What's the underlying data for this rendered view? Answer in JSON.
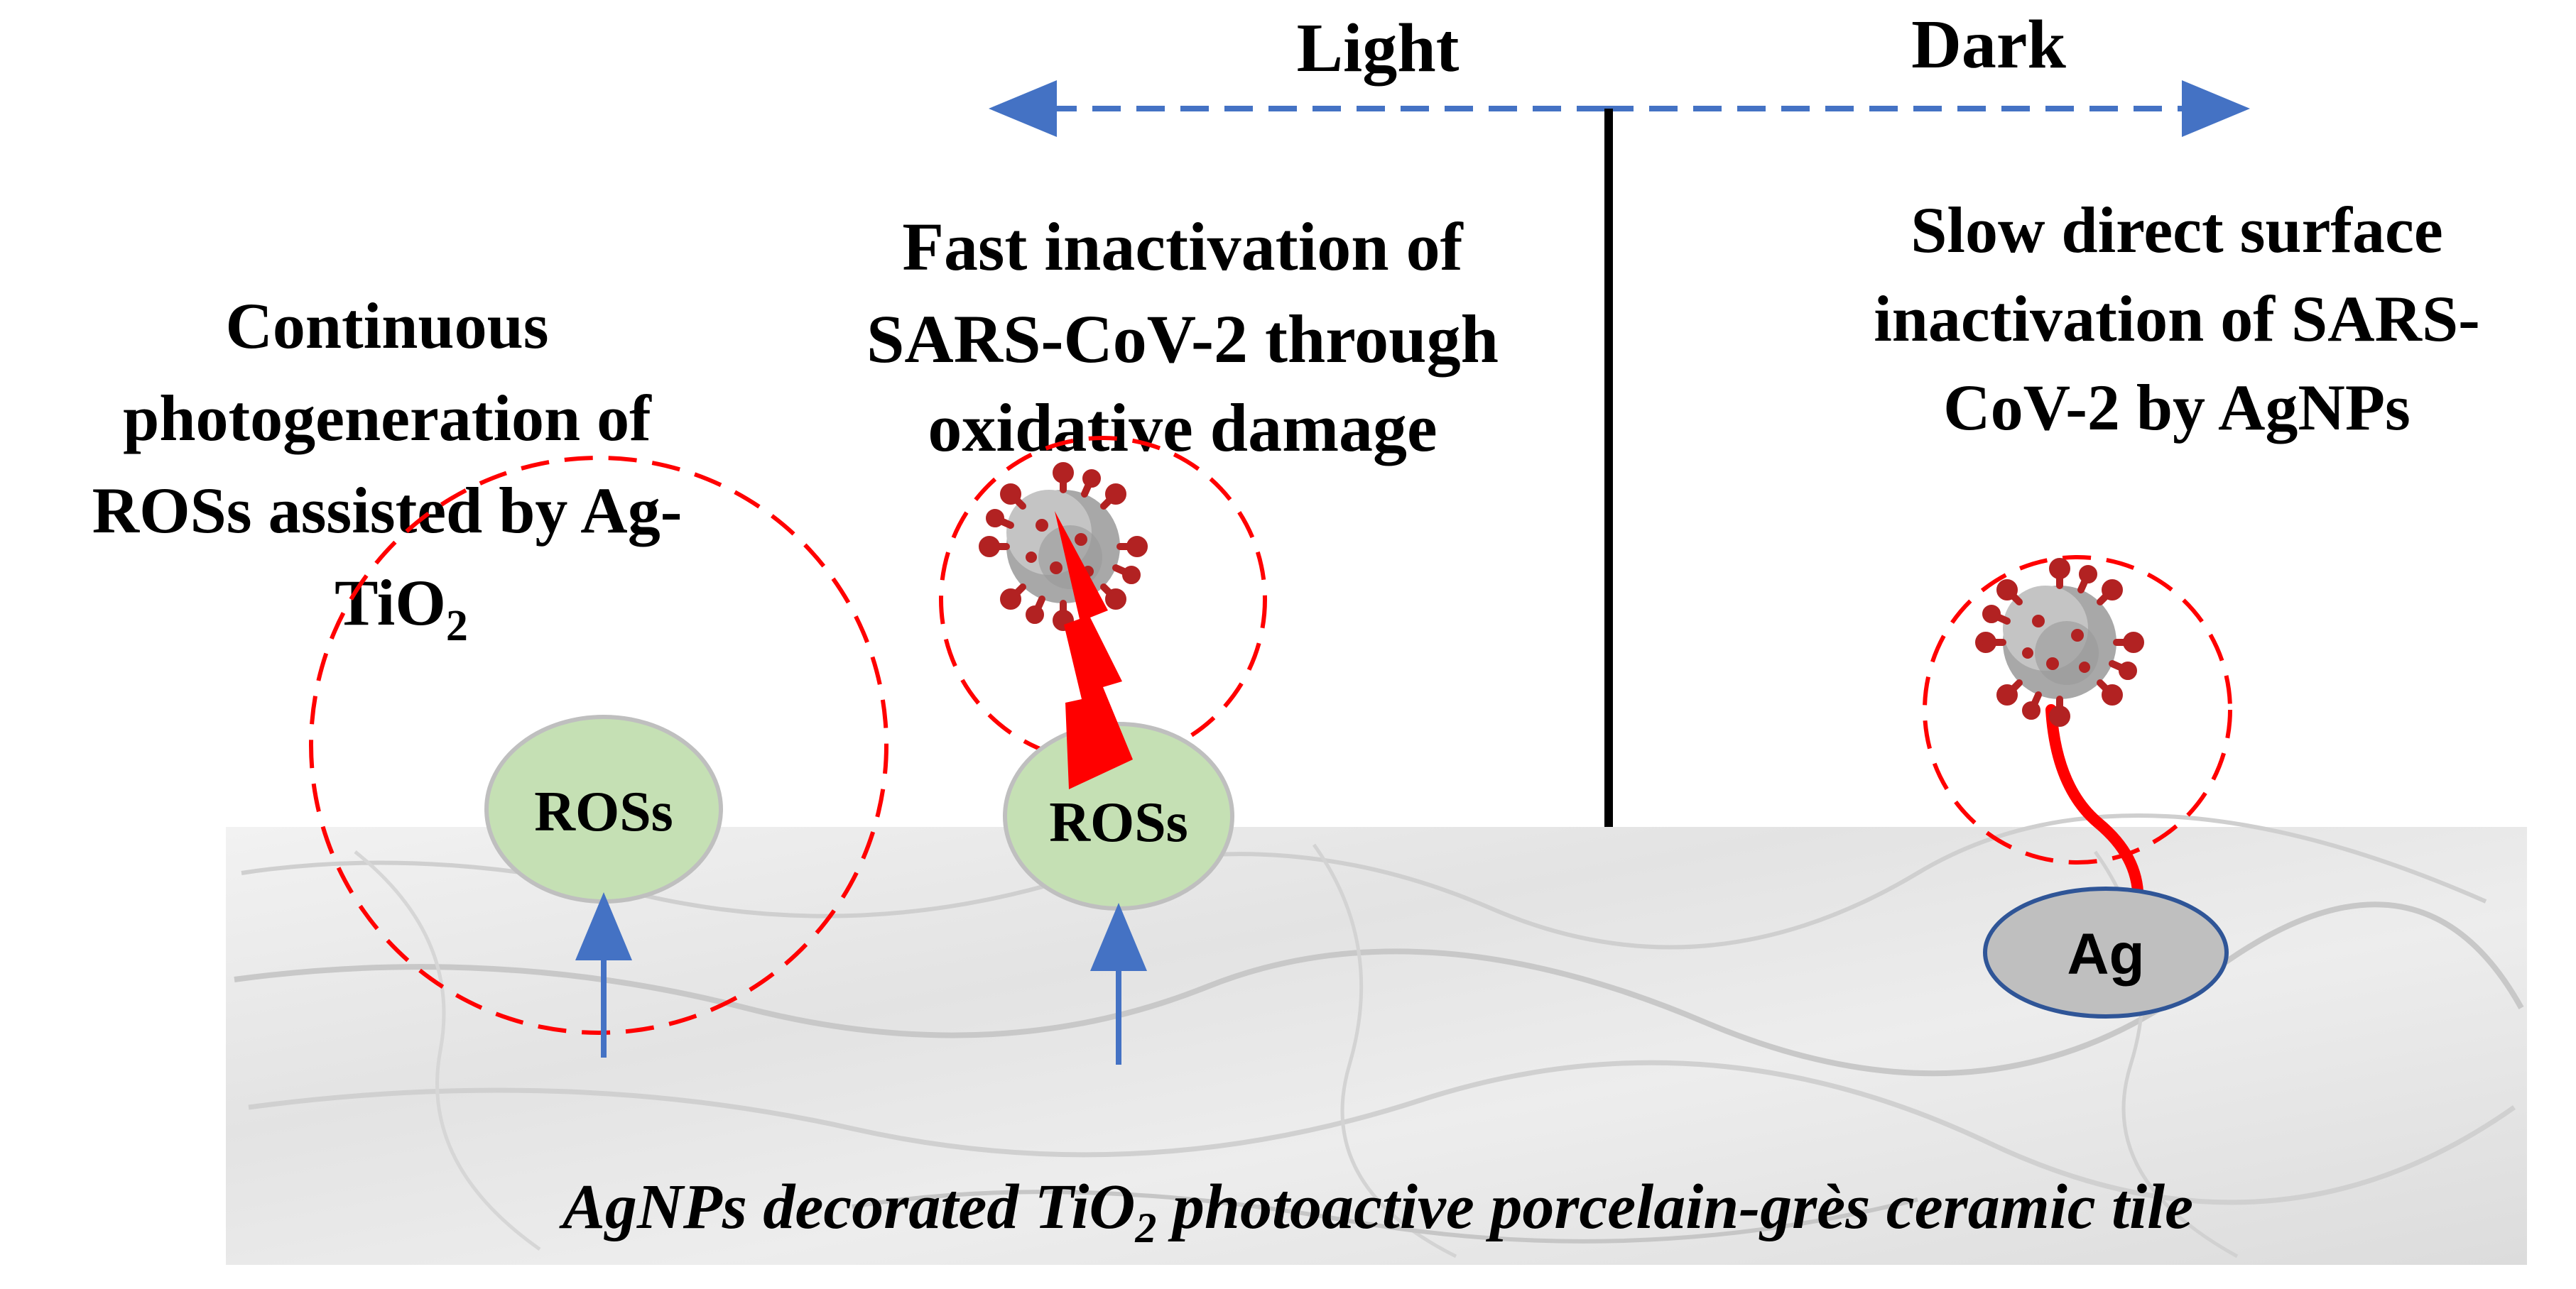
{
  "header": {
    "light_label": "Light",
    "dark_label": "Dark"
  },
  "panels": {
    "left": {
      "lines": [
        "Continuous",
        "photogeneration of",
        "ROSs assisted by Ag-"
      ],
      "last_line_prefix": "TiO",
      "last_line_subscript": "2",
      "ros_label": "ROSs"
    },
    "middle": {
      "lines": [
        "Fast inactivation of",
        "SARS-CoV-2 through",
        "oxidative damage"
      ],
      "ros_label": "ROSs"
    },
    "right": {
      "lines": [
        "Slow direct surface",
        "inactivation of SARS-",
        "CoV-2 by AgNPs"
      ],
      "ag_label": "Ag"
    }
  },
  "substrate": {
    "caption_part1": "AgNPs decorated TiO",
    "caption_subscript": "2",
    "caption_part2": " photoactive porcelain-grès ceramic tile"
  },
  "colors": {
    "arrow_blue": "#4472c4",
    "ros_fill": "#c5e0b4",
    "ag_fill": "#bfbfbf",
    "ag_stroke": "#2f5597",
    "dashed_red": "#ff0000",
    "virus_core": "#9e9e9e",
    "virus_spike": "#b22222",
    "bolt_red": "#ff0000"
  }
}
